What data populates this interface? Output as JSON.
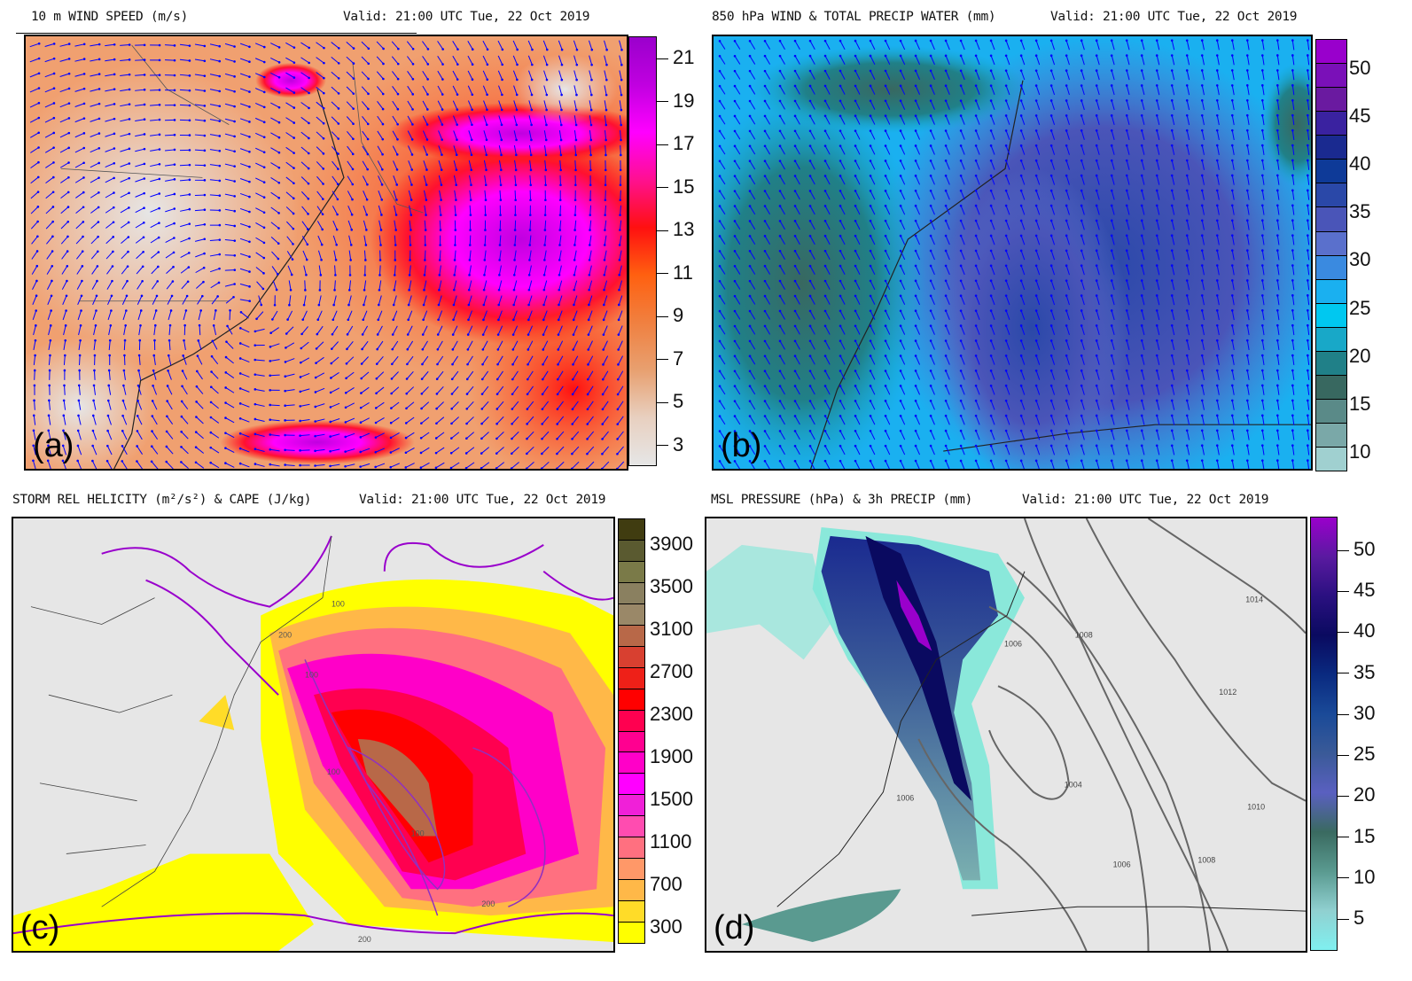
{
  "panels": [
    {
      "id": "a",
      "title": "10 m WIND SPEED (m/s)",
      "valid": "Valid: 21:00 UTC Tue, 22 Oct 2019",
      "label": "(a)",
      "colorbar": {
        "type": "continuous",
        "range": [
          2,
          22
        ],
        "ticks": [
          "21",
          "19",
          "17",
          "15",
          "13",
          "11",
          "9",
          "7",
          "5",
          "3"
        ],
        "colors": [
          "#9a00cc",
          "#c000e0",
          "#ff00ff",
          "#ff1090",
          "#ff1010",
          "#ff6010",
          "#f08040",
          "#e8a070",
          "#e8d0c0",
          "#e6e6e6"
        ]
      },
      "vector_color": "#0000ff"
    },
    {
      "id": "b",
      "title": "850 hPa WIND & TOTAL PRECIP WATER (mm)",
      "valid": "Valid: 21:00 UTC Tue, 22 Oct 2019",
      "label": "(b)",
      "colorbar": {
        "type": "discrete",
        "ticks": [
          "50",
          "45",
          "40",
          "35",
          "30",
          "25",
          "20",
          "15",
          "10"
        ],
        "colors": [
          "#9900cc",
          "#7a10b8",
          "#6a1aa0",
          "#3a22a0",
          "#1a2a90",
          "#0e3a98",
          "#2a48a8",
          "#4a55b8",
          "#5a70cc",
          "#3a8ae0",
          "#1ab0f0",
          "#00c8f0",
          "#18a8c8",
          "#208088",
          "#386860",
          "#5a8a88",
          "#7aa8a8",
          "#a0d0d0"
        ]
      },
      "vector_color": "#0000ff"
    },
    {
      "id": "c",
      "title": "STORM REL HELICITY (m²/s²) & CAPE (J/kg)",
      "valid": "Valid: 21:00 UTC Tue, 22 Oct 2019",
      "label": "(c)",
      "colorbar": {
        "type": "discrete",
        "ticks": [
          "3900",
          "3500",
          "3100",
          "2700",
          "2300",
          "1900",
          "1500",
          "1100",
          "700",
          "300"
        ],
        "colors": [
          "#403c10",
          "#5a5a30",
          "#7a7a48",
          "#8a8060",
          "#9a8868",
          "#b86848",
          "#d84030",
          "#ee2018",
          "#ff0000",
          "#ff0050",
          "#ff0090",
          "#ff00c8",
          "#ff00ff",
          "#f020d8",
          "#ff4cb0",
          "#ff7080",
          "#ff9868",
          "#ffb848",
          "#ffdc28",
          "#ffff00"
        ]
      },
      "contour_labels": [
        "100",
        "200",
        "100",
        "100",
        "200",
        "100",
        "200"
      ],
      "contour_color": "#9900cc"
    },
    {
      "id": "d",
      "title": "MSL PRESSURE (hPa) & 3h PRECIP (mm)",
      "valid": "Valid: 21:00 UTC Tue, 22 Oct 2019",
      "label": "(d)",
      "colorbar": {
        "type": "continuous",
        "range": [
          1,
          54
        ],
        "ticks": [
          "50",
          "45",
          "40",
          "35",
          "30",
          "25",
          "20",
          "15",
          "10",
          "5"
        ],
        "colors": [
          "#9a00cc",
          "#5a1aa0",
          "#2a1080",
          "#0a0a60",
          "#0a2a80",
          "#1a4a98",
          "#3a5a98",
          "#5a60c0",
          "#3a6a60",
          "#5a9a90",
          "#90d0d0",
          "#80f0f0"
        ]
      },
      "isobar_labels": [
        "1014",
        "1012",
        "1010",
        "1008",
        "1008",
        "1006",
        "1006",
        "1006",
        "1004"
      ]
    }
  ]
}
